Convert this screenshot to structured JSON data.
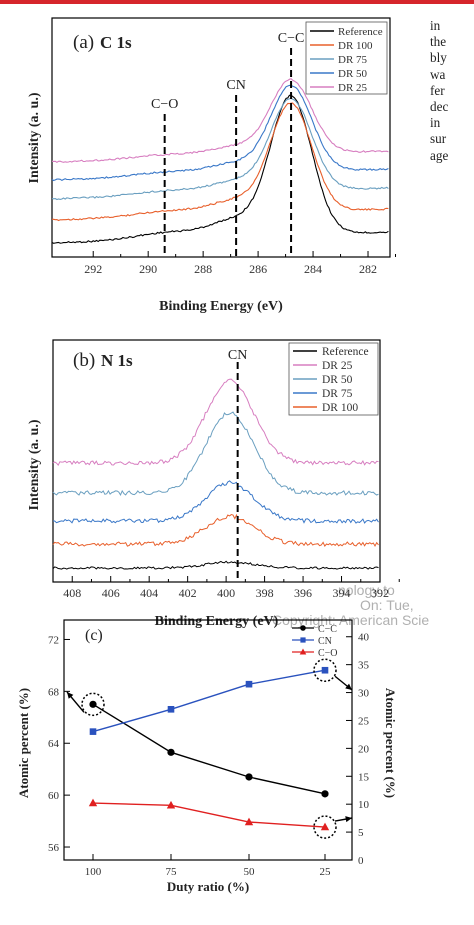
{
  "side_text": [
    "in",
    "the",
    "bly",
    "wa",
    "fer",
    "dec",
    "in",
    "sur",
    "age"
  ],
  "watermark": [
    "nology to",
    "On: Tue, ",
    "Copyright: American Scie"
  ],
  "chart_data": [
    {
      "type": "line",
      "panel_label": "(a)",
      "panel_title": "C 1s",
      "xlabel": "Binding Energy (eV)",
      "ylabel": "Intensity (a. u.)",
      "xlim": [
        293.5,
        281.2
      ],
      "x_ticks": [
        "292",
        "290",
        "288",
        "286",
        "284",
        "282"
      ],
      "x_tick_values": [
        292,
        290,
        288,
        286,
        284,
        282
      ],
      "markers": [
        {
          "label": "C−O",
          "x": 289.4
        },
        {
          "label": "CN",
          "x": 286.8
        },
        {
          "label": "C−C",
          "x": 284.8
        }
      ],
      "legend_position": "top-right",
      "series": [
        {
          "name": "Reference",
          "color": "#000000"
        },
        {
          "name": "DR 100",
          "color": "#e8602c"
        },
        {
          "name": "DR 75",
          "color": "#6a9fc0"
        },
        {
          "name": "DR 50",
          "color": "#3a78c8"
        },
        {
          "name": "DR 25",
          "color": "#d77ec0"
        }
      ]
    },
    {
      "type": "line",
      "panel_label": "(b)",
      "panel_title": "N 1s",
      "xlabel": "Binding Energy (eV)",
      "ylabel": "Intensity (a. u.)",
      "xlim": [
        409,
        392
      ],
      "x_ticks": [
        "408",
        "406",
        "404",
        "402",
        "400",
        "398",
        "396",
        "394",
        "392"
      ],
      "x_tick_values": [
        408,
        406,
        404,
        402,
        400,
        398,
        396,
        394,
        392
      ],
      "markers": [
        {
          "label": "CN",
          "x": 399.4
        }
      ],
      "legend_position": "top-right",
      "series": [
        {
          "name": "Reference",
          "color": "#000000"
        },
        {
          "name": "DR 25",
          "color": "#d77ec0"
        },
        {
          "name": "DR 50",
          "color": "#6a9fc0"
        },
        {
          "name": "DR 75",
          "color": "#3a78c8"
        },
        {
          "name": "DR 100",
          "color": "#e8602c"
        }
      ]
    },
    {
      "type": "line",
      "panel_label": "(c)",
      "xlabel": "Duty ratio (%)",
      "ylabel": "Atomic percent (%)",
      "y2label": "Atomic percent (%)",
      "categories": [
        "100",
        "75",
        "50",
        "25"
      ],
      "ylim": [
        55,
        73.5
      ],
      "y_ticks": [
        "56",
        "60",
        "64",
        "68",
        "72"
      ],
      "y_tick_values": [
        56,
        60,
        64,
        68,
        72
      ],
      "y2lim": [
        0,
        43
      ],
      "y2_ticks": [
        "0",
        "5",
        "10",
        "15",
        "20",
        "25",
        "30",
        "35",
        "40"
      ],
      "y2_tick_values": [
        0,
        5,
        10,
        15,
        20,
        25,
        30,
        35,
        40
      ],
      "legend_position": "top-right",
      "series": [
        {
          "name": "C−C",
          "axis": "left",
          "color": "#000000",
          "marker": "circle",
          "values": [
            67.0,
            63.3,
            61.4,
            60.1
          ]
        },
        {
          "name": "CN",
          "axis": "right",
          "color": "#2a52be",
          "marker": "square",
          "values": [
            23,
            27,
            31.5,
            34
          ]
        },
        {
          "name": "C−O",
          "axis": "right",
          "color": "#e02020",
          "marker": "triangle",
          "values": [
            10.2,
            9.8,
            6.8,
            5.9
          ]
        }
      ]
    }
  ]
}
